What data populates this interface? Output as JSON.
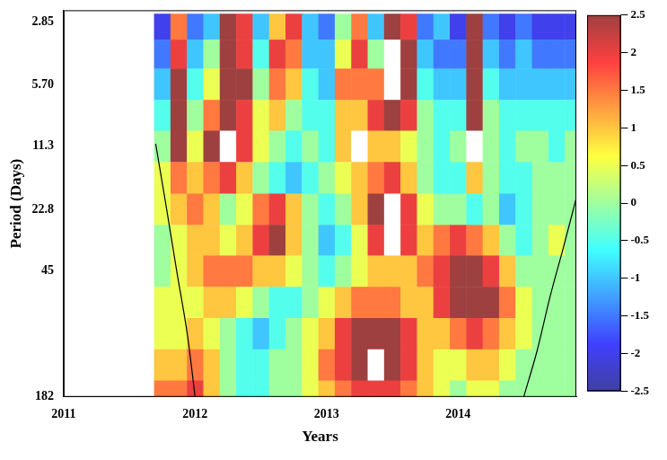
{
  "chart_data": {
    "type": "heatmap",
    "x_label": "Years",
    "y_label": "Period (Days)",
    "log": "y",
    "grid": false,
    "xlim": [
      2011,
      2014.9
    ],
    "xticks": [
      2011,
      2012,
      2013,
      2014
    ],
    "ylim": [
      2.5,
      182
    ],
    "yticks": [
      2.85,
      {
        "value": 5.7,
        "label": "5.70"
      },
      11.3,
      22.8,
      45,
      182
    ],
    "x": [
      2011.75,
      2011.875,
      2012.0,
      2012.125,
      2012.25,
      2012.375,
      2012.5,
      2012.625,
      2012.75,
      2012.875,
      2013.0,
      2013.125,
      2013.25,
      2013.375,
      2013.5,
      2013.625,
      2013.75,
      2013.875,
      2014.0,
      2014.125,
      2014.25,
      2014.375,
      2014.5,
      2014.625,
      2014.75,
      2014.875
    ],
    "y": [
      3,
      4,
      5.7,
      8,
      11.3,
      16,
      22.8,
      32,
      45,
      64,
      90,
      128,
      180
    ],
    "values": [
      [
        -2,
        1.5,
        -1.5,
        -1,
        2.5,
        2,
        -1,
        1,
        2,
        -1,
        -1.5,
        0,
        1.5,
        -1,
        2.5,
        2,
        -1.5,
        -1,
        -2,
        2.5,
        -1.5,
        -2,
        -1.5,
        -2,
        -2,
        -2
      ],
      [
        -1.5,
        2,
        -1,
        0,
        2.5,
        2,
        -0.5,
        2,
        1.5,
        -1,
        -1,
        0.5,
        2,
        0,
        3,
        2.5,
        -1,
        -1.5,
        -1.5,
        2.5,
        -1,
        -1.5,
        -1,
        -1.5,
        -1.5,
        -1.5
      ],
      [
        -1,
        2.5,
        -0.5,
        0.5,
        2.5,
        2.5,
        0,
        1.5,
        1,
        -0.5,
        -1,
        1.5,
        1.5,
        1.5,
        3,
        2.5,
        -0.5,
        -1,
        -1,
        2.5,
        -0.5,
        -1,
        -1,
        -1,
        -1,
        -1
      ],
      [
        -0.5,
        2.5,
        0,
        1.5,
        2.5,
        2,
        0.5,
        1,
        0,
        -0.5,
        -0.5,
        1,
        1,
        2,
        2.5,
        2,
        0,
        -0.5,
        -0.5,
        2.5,
        0,
        -0.5,
        -0.5,
        -0.5,
        -0.5,
        -0.5
      ],
      [
        0,
        2.5,
        0.5,
        2.5,
        3,
        2,
        0.5,
        0,
        -0.5,
        0,
        -0.5,
        1,
        3,
        1,
        1,
        0.5,
        0,
        -0.5,
        0,
        3,
        0,
        -0.5,
        0,
        0,
        -0.5,
        0
      ],
      [
        0.5,
        1.5,
        1,
        1.5,
        2,
        1,
        0,
        -0.5,
        -1,
        -0.5,
        0,
        0.5,
        1,
        1.5,
        2,
        1,
        0,
        -0.5,
        -0.5,
        1,
        0,
        -0.5,
        -0.5,
        0,
        0,
        0
      ],
      [
        0.5,
        1,
        1.5,
        1,
        0,
        0.5,
        1.5,
        2,
        1,
        0,
        -0.5,
        0,
        1,
        2.5,
        3,
        2,
        0.5,
        0,
        0,
        -0.5,
        0,
        -1,
        -0.5,
        0,
        0,
        0
      ],
      [
        0,
        0.5,
        1,
        1,
        0.5,
        1,
        2,
        2.5,
        1,
        0,
        -1,
        -0.5,
        0.5,
        2,
        3,
        2,
        1,
        1.5,
        2,
        1.5,
        1,
        0,
        -0.5,
        0,
        0.5,
        0
      ],
      [
        0,
        0.5,
        1,
        1.5,
        1.5,
        1.5,
        1,
        1,
        0.5,
        0,
        -0.5,
        0,
        0.5,
        1,
        1,
        1,
        1.5,
        2,
        2.5,
        2.5,
        2,
        1,
        0,
        0,
        0,
        0
      ],
      [
        0.5,
        0.5,
        0.5,
        1,
        1,
        0.5,
        0,
        -0.5,
        -0.5,
        0,
        0.5,
        1,
        1.5,
        1.5,
        1.5,
        1,
        1,
        2,
        2.5,
        2.5,
        2.5,
        1.5,
        0.5,
        0,
        0,
        0
      ],
      [
        0.5,
        0.5,
        1,
        0.5,
        0,
        -0.5,
        -1,
        -0.5,
        0,
        0.5,
        1,
        2,
        2.5,
        2.5,
        2.5,
        2,
        1,
        1,
        1.5,
        2,
        1.5,
        1,
        0.5,
        0,
        0,
        0
      ],
      [
        1,
        1,
        1.5,
        1,
        0,
        -0.5,
        -0.5,
        0,
        0,
        0.5,
        1.5,
        2,
        2.5,
        3,
        2.5,
        2,
        1,
        0.5,
        0.5,
        1,
        1,
        0.5,
        0,
        0,
        0,
        0
      ],
      [
        1.5,
        1.5,
        2,
        1,
        0,
        -0.5,
        -0.5,
        0,
        0,
        0.5,
        1,
        1.5,
        2,
        2,
        2,
        1.5,
        1,
        0.5,
        0,
        0.5,
        0.5,
        0,
        0,
        0,
        0,
        0
      ]
    ],
    "color_range": [
      -2.5,
      2.5
    ],
    "color_ticks": [
      2.5,
      2,
      1.5,
      1,
      0.5,
      0,
      -0.5,
      -1,
      -1.5,
      -2,
      -2.5
    ],
    "series": [
      {
        "type": "line",
        "color": "#000000",
        "x": [
          2011.7,
          2011.78,
          2011.86,
          2011.94,
          2012.0
        ],
        "values": [
          11,
          22,
          45,
          90,
          182
        ]
      },
      {
        "type": "line",
        "color": "#000000",
        "x": [
          2014.9,
          2014.8,
          2014.7,
          2014.6,
          2014.5
        ],
        "values": [
          20,
          35,
          60,
          110,
          182
        ]
      }
    ]
  }
}
